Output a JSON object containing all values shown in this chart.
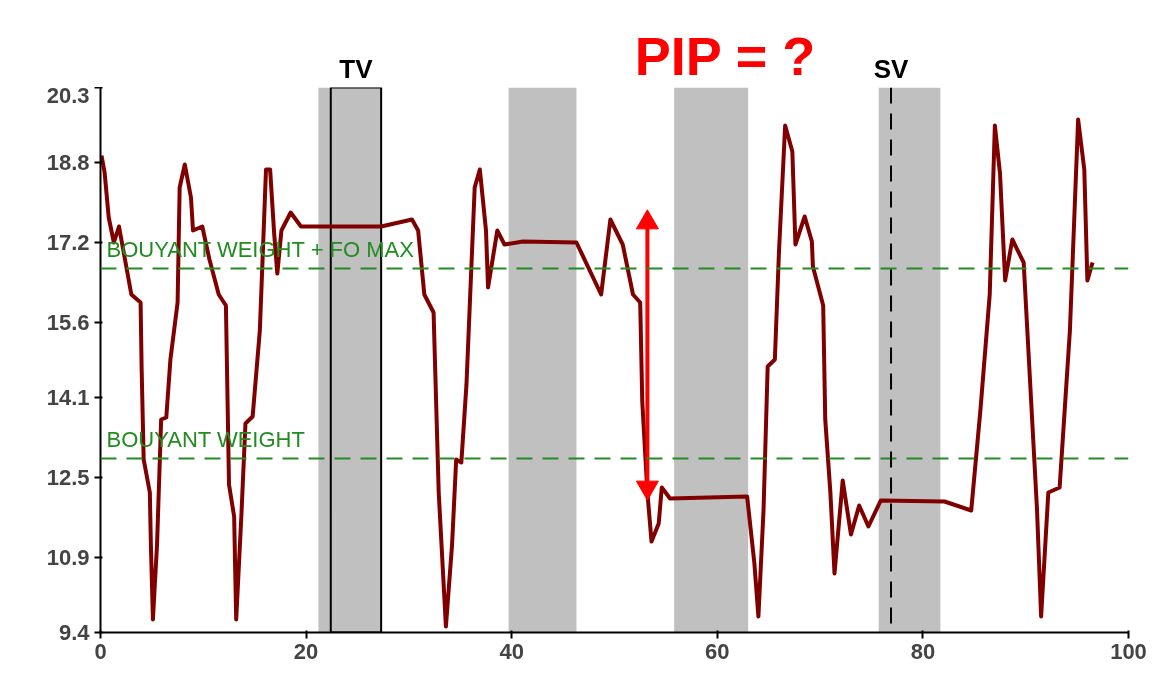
{
  "chart_data": {
    "type": "line",
    "grid": false,
    "marker": "none",
    "line_style": "solid",
    "xlim": [
      0,
      100
    ],
    "xticks": [
      0,
      20,
      40,
      60,
      80,
      100
    ],
    "ylim": [
      9.4,
      20.3
    ],
    "yticks": [
      9.4,
      10.9,
      12.5,
      14.1,
      15.6,
      17.2,
      18.8,
      20.3
    ],
    "series": [
      {
        "color": "#800000",
        "x": [
          0.1,
          0.4,
          0.8,
          1.3,
          1.8,
          3.0,
          3.9,
          4.0,
          4.2,
          4.8,
          4.9,
          5.1,
          5.5,
          5.9,
          6.4,
          6.8,
          7.5,
          7.7,
          8.2,
          8.8,
          9.0,
          9.9,
          10.6,
          11.5,
          12.2,
          12.5,
          13.0,
          13.2,
          13.7,
          14.1,
          14.8,
          15.5,
          16.1,
          16.5,
          16.9,
          17.2,
          17.6,
          18.5,
          19.5,
          27.3,
          30.3,
          30.9,
          31.5,
          32.4,
          32.9,
          33.6,
          34.2,
          34.6,
          35.1,
          35.6,
          36.4,
          36.9,
          37.5,
          37.7,
          38.6,
          39.3,
          41.1,
          46.3,
          48.7,
          49.6,
          50.8,
          51.8,
          52.5,
          52.7,
          53.2,
          53.6,
          54.3,
          54.6,
          55.4,
          62.9,
          63.6,
          64.0,
          64.5,
          64.9,
          65.6,
          66.0,
          66.6,
          67.3,
          67.6,
          68.5,
          69.2,
          69.3,
          70.3,
          70.5,
          71.0,
          71.4,
          72.2,
          73.0,
          73.8,
          74.7,
          75.9,
          82.1,
          84.7,
          85.6,
          86.5,
          87.0,
          87.5,
          88.0,
          88.7,
          89.8,
          91.1,
          91.5,
          92.2,
          93.3,
          94.3,
          95.1,
          95.7,
          96.0,
          96.5
        ],
        "values": [
          18.94,
          18.6,
          17.7,
          17.2,
          17.52,
          16.16,
          16.0,
          14.7,
          12.86,
          12.2,
          11.16,
          9.66,
          11.16,
          13.66,
          13.7,
          14.86,
          16.0,
          18.3,
          18.76,
          18.1,
          17.44,
          17.52,
          16.86,
          16.16,
          15.94,
          12.36,
          11.72,
          9.66,
          11.72,
          13.58,
          13.72,
          15.44,
          18.66,
          18.66,
          17.36,
          16.58,
          17.44,
          17.8,
          17.52,
          17.52,
          17.66,
          17.44,
          16.16,
          15.8,
          12.2,
          9.52,
          11.16,
          12.86,
          12.8,
          14.36,
          18.3,
          18.66,
          17.44,
          16.3,
          17.44,
          17.16,
          17.22,
          17.2,
          16.16,
          17.66,
          17.16,
          16.16,
          16.0,
          14.02,
          12.2,
          11.22,
          11.58,
          12.3,
          12.08,
          12.12,
          10.8,
          9.72,
          11.86,
          14.72,
          14.86,
          17.02,
          19.54,
          19.02,
          17.16,
          17.72,
          17.22,
          16.72,
          15.94,
          13.66,
          12.2,
          10.58,
          12.44,
          11.36,
          11.94,
          11.52,
          12.04,
          12.02,
          11.84,
          13.86,
          16.16,
          19.54,
          18.58,
          16.44,
          17.26,
          16.8,
          11.86,
          9.72,
          12.2,
          12.3,
          15.44,
          19.66,
          18.66,
          16.44,
          16.8
        ]
      },
      {
        "type": "line",
        "color": "#ff0000",
        "marker": "triangle",
        "x": [
          53.2,
          53.2
        ],
        "values": [
          17.6,
          12.3
        ]
      }
    ],
    "bands": [
      {
        "axis": "x",
        "from": 21.2,
        "to": 27.2,
        "color": "#c0c0c0"
      },
      {
        "axis": "x",
        "from": 22.4,
        "to": 27.3,
        "label": "TV",
        "color": "#c0c0c0"
      },
      {
        "axis": "x",
        "from": 39.7,
        "to": 46.3,
        "color": "#c0c0c0"
      },
      {
        "axis": "x",
        "from": 55.8,
        "to": 63.0,
        "color": "#c0c0c0"
      },
      {
        "axis": "x",
        "from": 75.7,
        "to": 81.7,
        "color": "#c0c0c0"
      }
    ],
    "ref_lines": [
      {
        "axis": "y",
        "value": 16.68,
        "label": "BOUYANT WEIGHT + FO MAX",
        "color": "#228b22",
        "line_style": "dashed"
      },
      {
        "axis": "y",
        "value": 12.88,
        "label": "BOUYANT WEIGHT",
        "color": "#228b22",
        "line_style": "dashed"
      },
      {
        "axis": "x",
        "value": 76.9,
        "label": "SV",
        "color": "#000000",
        "line_style": "dashed"
      }
    ],
    "annotations": [
      "PIP = ?"
    ]
  }
}
